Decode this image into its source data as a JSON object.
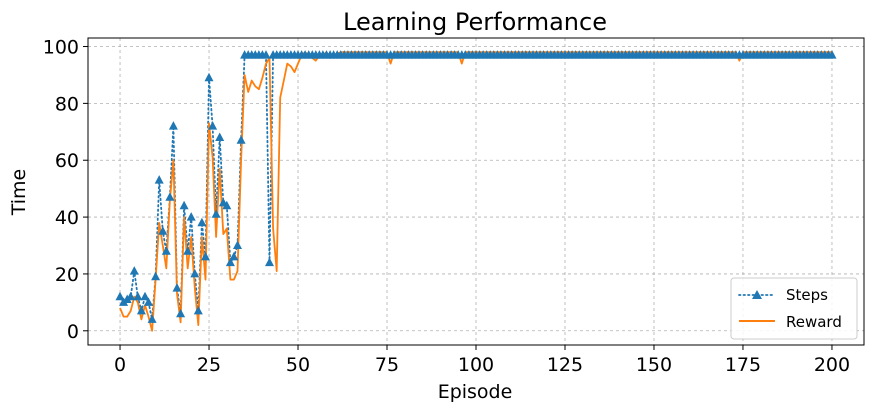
{
  "chart_data": {
    "type": "line",
    "title": "Learning Performance",
    "xlabel": "Episode",
    "ylabel": "Time",
    "xlim": [
      -9,
      209
    ],
    "ylim": [
      -5,
      103
    ],
    "xticks": [
      0,
      25,
      50,
      75,
      100,
      125,
      150,
      175,
      200
    ],
    "yticks": [
      0,
      20,
      40,
      60,
      80,
      100
    ],
    "grid": true,
    "legend_position": "lower-right",
    "colors": {
      "steps": "#1f77b4",
      "reward": "#ff7f0e",
      "grid": "#b0b0b0"
    },
    "steps_marker": "triangle-up",
    "steps_line_style": "dotted",
    "plateau": {
      "steps": 97,
      "reward": 98
    },
    "series": [
      {
        "name": "Steps",
        "x": [
          0,
          1,
          2,
          3,
          4,
          5,
          6,
          7,
          8,
          9,
          10,
          11,
          12,
          13,
          14,
          15,
          16,
          17,
          18,
          19,
          20,
          21,
          22,
          23,
          24,
          25,
          26,
          27,
          28,
          29,
          30,
          31,
          32,
          33,
          34,
          35,
          36,
          37,
          38,
          39,
          40,
          41,
          42,
          43,
          44,
          45,
          46,
          47,
          48,
          49,
          50
        ],
        "values": [
          12,
          10,
          11,
          12,
          21,
          12,
          7,
          12,
          10,
          4,
          19,
          53,
          35,
          28,
          47,
          72,
          15,
          6,
          44,
          28,
          40,
          20,
          7,
          38,
          26,
          89,
          72,
          41,
          68,
          45,
          44,
          24,
          26,
          30,
          67,
          97,
          97,
          97,
          97,
          97,
          97,
          97,
          24,
          97,
          97,
          97,
          97,
          97,
          97,
          97,
          97
        ]
      },
      {
        "name": "Reward",
        "x": [
          0,
          1,
          2,
          3,
          4,
          5,
          6,
          7,
          8,
          9,
          10,
          11,
          12,
          13,
          14,
          15,
          16,
          17,
          18,
          19,
          20,
          21,
          22,
          23,
          24,
          25,
          26,
          27,
          28,
          29,
          30,
          31,
          32,
          33,
          34,
          35,
          36,
          37,
          38,
          39,
          40,
          41,
          42,
          43,
          44,
          45,
          46,
          47,
          48,
          49,
          50,
          51,
          52,
          53,
          54,
          55,
          56,
          57,
          58,
          59,
          60,
          62,
          65,
          70,
          75,
          76,
          77,
          80,
          85,
          95,
          96,
          97,
          100,
          110,
          120,
          130,
          140,
          150,
          160,
          170,
          173,
          174,
          175,
          180,
          190,
          200
        ],
        "values": [
          8,
          5,
          5,
          7,
          12,
          10,
          4,
          9,
          5,
          0,
          18,
          38,
          30,
          22,
          46,
          60,
          13,
          3,
          40,
          22,
          33,
          15,
          2,
          33,
          18,
          73,
          61,
          33,
          57,
          34,
          36,
          18,
          18,
          21,
          60,
          90,
          84,
          88,
          86,
          85,
          89,
          94,
          96,
          36,
          21,
          82,
          88,
          94,
          93,
          91,
          94,
          97,
          98,
          97,
          96,
          95,
          97,
          97,
          98,
          96,
          97,
          98,
          98,
          98,
          98,
          94,
          98,
          98,
          98,
          98,
          94,
          98,
          98,
          98,
          98,
          98,
          98,
          98,
          98,
          98,
          98,
          95,
          98,
          98,
          98,
          98
        ]
      }
    ]
  }
}
